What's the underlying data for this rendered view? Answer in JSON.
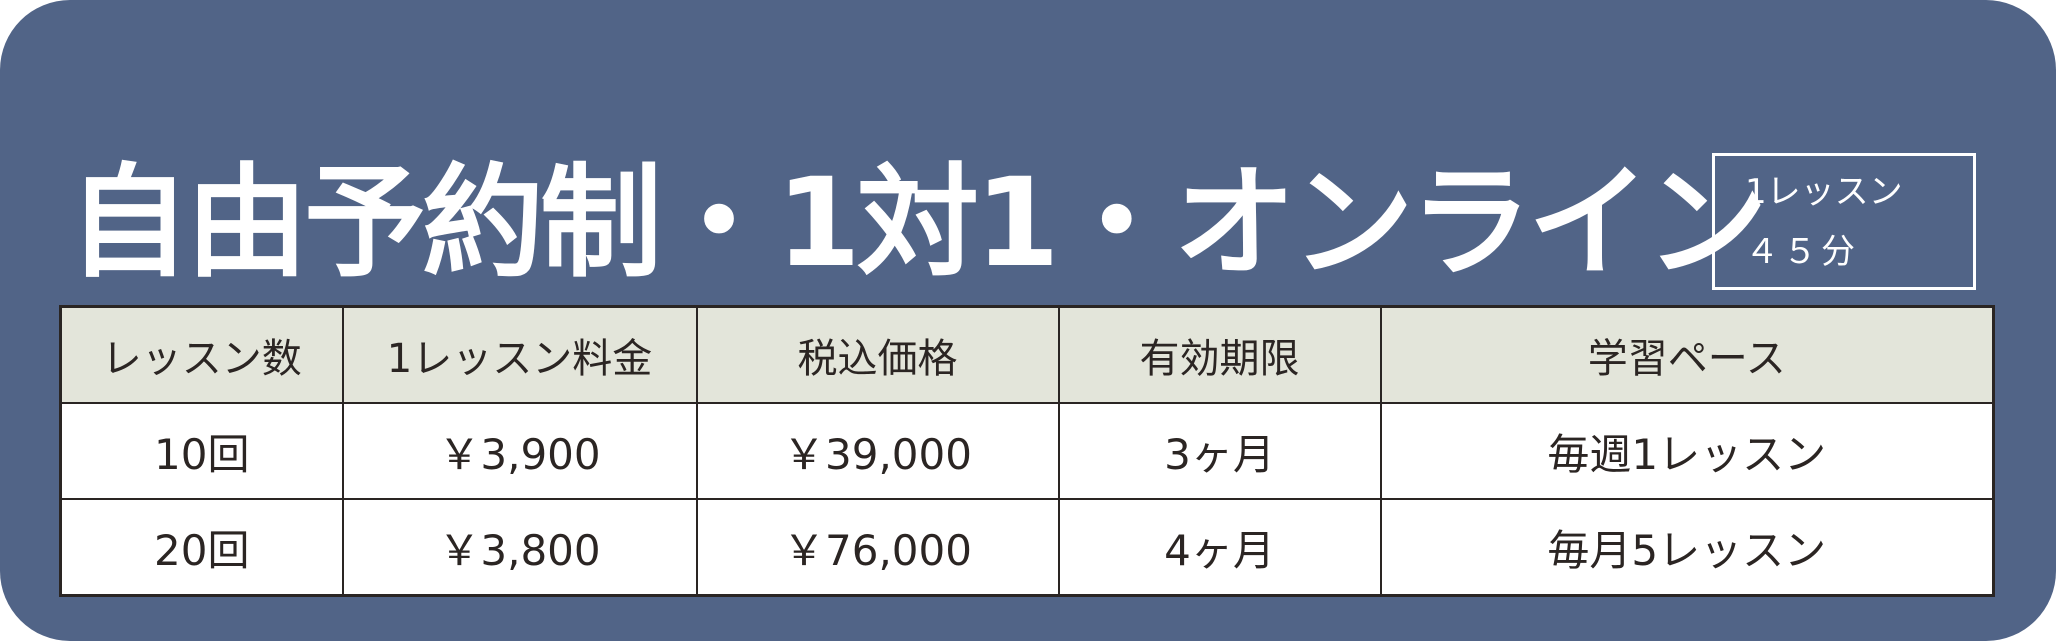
{
  "title": "自由予約制・1対1・オンライン",
  "badge": {
    "line1": "1レッスン",
    "line2": "４５分"
  },
  "colors": {
    "background": "#516487",
    "header": "#e3e5da",
    "border": "#2a2523",
    "text": "#2b2523"
  },
  "table": {
    "headers": [
      "レッスン数",
      "1レッスン料金",
      "税込価格",
      "有効期限",
      "学習ペース"
    ],
    "rows": [
      [
        "10回",
        "￥3,900",
        "￥39,000",
        "3ヶ月",
        "毎週1レッスン"
      ],
      [
        "20回",
        "￥3,800",
        "￥76,000",
        "4ヶ月",
        "毎月5レッスン"
      ]
    ]
  }
}
